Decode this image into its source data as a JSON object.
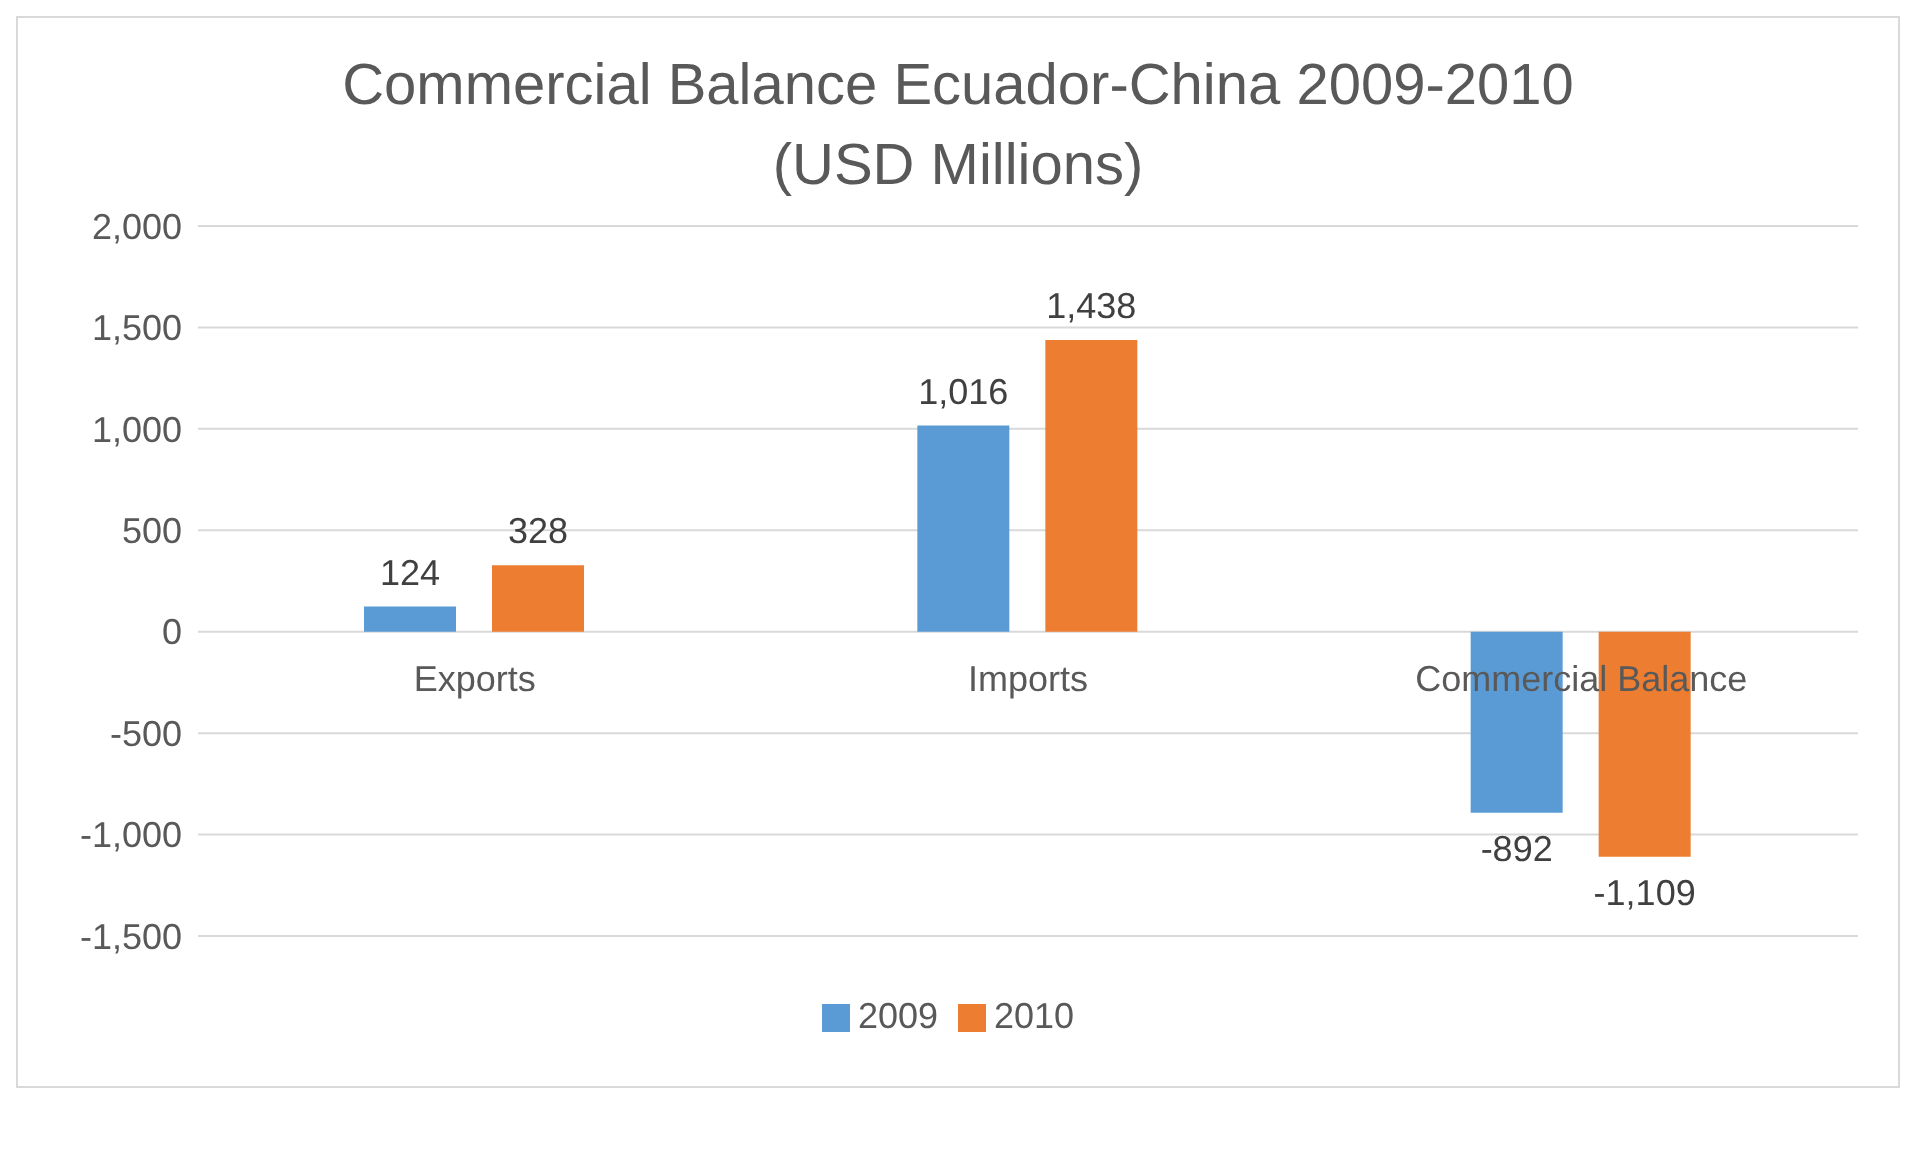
{
  "chart_data": {
    "type": "bar",
    "title": "Commercial Balance Ecuador-China 2009-2010",
    "subtitle": "(USD Millions)",
    "categories": [
      "Exports",
      "Imports",
      "Commercial Balance"
    ],
    "series": [
      {
        "name": "2009",
        "color": "#5b9bd5",
        "values": [
          124,
          1016,
          -892
        ],
        "value_labels": [
          "124",
          "1,016",
          "-892"
        ]
      },
      {
        "name": "2010",
        "color": "#ed7d31",
        "values": [
          328,
          1438,
          -1109
        ],
        "value_labels": [
          "328",
          "1,438",
          "-1,109"
        ]
      }
    ],
    "ylim": [
      -1500,
      2000
    ],
    "yticks": [
      {
        "value": -1500,
        "label": "-1,500"
      },
      {
        "value": -1000,
        "label": "-1,000"
      },
      -500,
      0,
      500,
      {
        "value": 1000,
        "label": "1,000"
      },
      {
        "value": 1500,
        "label": "1,500"
      },
      {
        "value": 2000,
        "label": "2,000"
      }
    ],
    "grid": "y",
    "legend": "bottom"
  }
}
